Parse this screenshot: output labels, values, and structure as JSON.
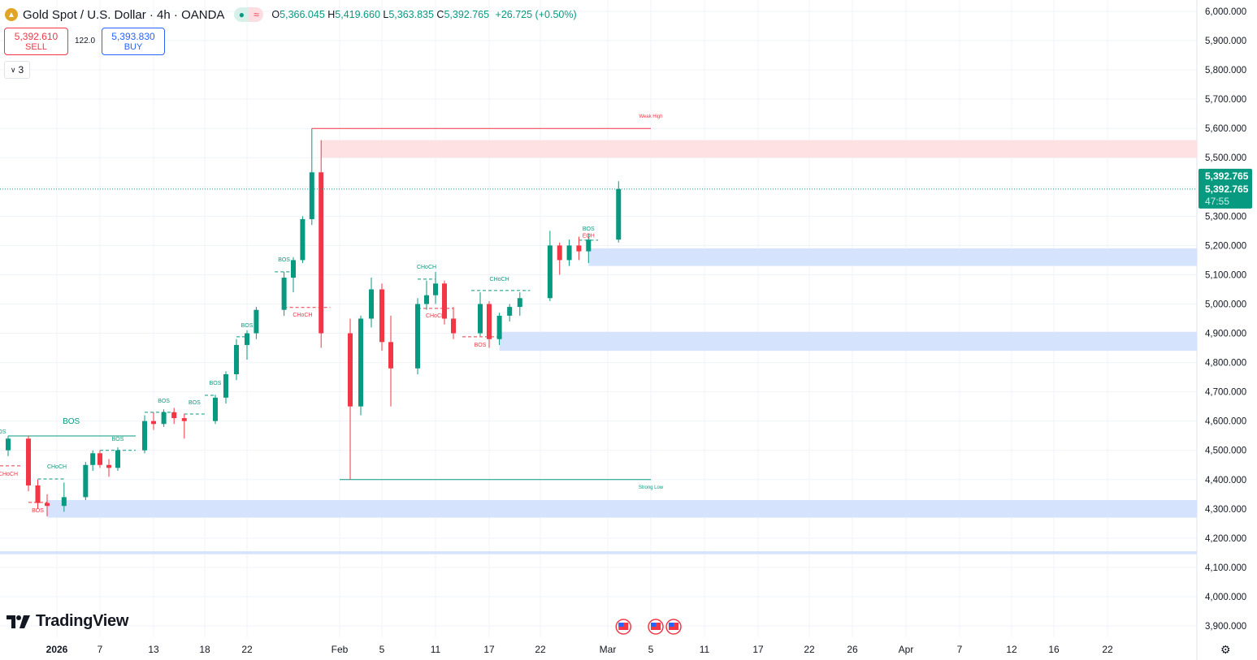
{
  "header": {
    "symbol_title": "Gold Spot / U.S. Dollar · 4h · OANDA",
    "open_label": "O",
    "open": "5,366.045",
    "high_label": "H",
    "high": "5,419.660",
    "low_label": "L",
    "low": "5,363.835",
    "close_label": "C",
    "close": "5,392.765",
    "change": "+26.725 (+0.50%)",
    "market_status_icon": "market-open-dot-icon",
    "data_mode_icon": "approx-icon"
  },
  "trade": {
    "sell_price": "5,392.610",
    "sell_label": "SELL",
    "spread": "122.0",
    "buy_price": "5,393.830",
    "buy_label": "BUY"
  },
  "indicators_toggle": {
    "count": "3",
    "icon": "chevron-down-icon"
  },
  "branding": {
    "logo_text": "TradingView"
  },
  "last_price": {
    "price": "5,392.765",
    "price2": "5,392.765",
    "countdown": "47:55"
  },
  "colors": {
    "up": "#089981",
    "down": "#f23645",
    "supply_zone": "#fde1e3",
    "demand_zone": "#d6e3fd",
    "last_price": "#089981"
  },
  "chart_data": {
    "type": "candlestick",
    "title": "Gold Spot / U.S. Dollar · 4h · OANDA",
    "ylim": [
      3900,
      6000
    ],
    "y_ticks": [
      "6,000.000",
      "5,900.000",
      "5,800.000",
      "5,700.000",
      "5,600.000",
      "5,500.000",
      "5,400.000",
      "5,300.000",
      "5,200.000",
      "5,100.000",
      "5,000.000",
      "4,900.000",
      "4,800.000",
      "4,700.000",
      "4,600.000",
      "4,500.000",
      "4,400.000",
      "4,300.000",
      "4,200.000",
      "4,100.000",
      "4,000.000",
      "3,900.000"
    ],
    "x_ticks": [
      {
        "label": "2026",
        "date": "2026-01-01"
      },
      {
        "label": "7",
        "date": "2026-01-07"
      },
      {
        "label": "13",
        "date": "2026-01-13"
      },
      {
        "label": "18",
        "date": "2026-01-18"
      },
      {
        "label": "22",
        "date": "2026-01-22"
      },
      {
        "label": "Feb",
        "date": "2026-02-01"
      },
      {
        "label": "5",
        "date": "2026-02-05"
      },
      {
        "label": "11",
        "date": "2026-02-11"
      },
      {
        "label": "17",
        "date": "2026-02-17"
      },
      {
        "label": "22",
        "date": "2026-02-22"
      },
      {
        "label": "Mar",
        "date": "2026-03-01"
      },
      {
        "label": "5",
        "date": "2026-03-05"
      },
      {
        "label": "11",
        "date": "2026-03-11"
      },
      {
        "label": "17",
        "date": "2026-03-17"
      },
      {
        "label": "22",
        "date": "2026-03-22"
      },
      {
        "label": "26",
        "date": "2026-03-26"
      },
      {
        "label": "Apr",
        "date": "2026-04-01"
      },
      {
        "label": "7",
        "date": "2026-04-07"
      },
      {
        "label": "12",
        "date": "2026-04-12"
      },
      {
        "label": "16",
        "date": "2026-04-16"
      },
      {
        "label": "22",
        "date": "2026-04-22"
      }
    ],
    "grid": true,
    "candles": [
      [
        "2025-12-26",
        4500,
        4550,
        4480,
        4540
      ],
      [
        "2025-12-29",
        4540,
        4550,
        4360,
        4380
      ],
      [
        "2025-12-30",
        4380,
        4400,
        4300,
        4320
      ],
      [
        "2025-12-31",
        4320,
        4350,
        4275,
        4310
      ],
      [
        "2026-01-02",
        4310,
        4390,
        4290,
        4340
      ],
      [
        "2026-01-05",
        4340,
        4460,
        4330,
        4450
      ],
      [
        "2026-01-06",
        4450,
        4500,
        4430,
        4490
      ],
      [
        "2026-01-07",
        4490,
        4500,
        4440,
        4450
      ],
      [
        "2026-01-08",
        4450,
        4470,
        4410,
        4440
      ],
      [
        "2026-01-09",
        4440,
        4510,
        4430,
        4500
      ],
      [
        "2026-01-12",
        4500,
        4620,
        4490,
        4600
      ],
      [
        "2026-01-13",
        4600,
        4630,
        4570,
        4590
      ],
      [
        "2026-01-14",
        4590,
        4640,
        4580,
        4630
      ],
      [
        "2026-01-15",
        4630,
        4645,
        4590,
        4610
      ],
      [
        "2026-01-16",
        4610,
        4625,
        4540,
        4600
      ],
      [
        "2026-01-19",
        4600,
        4690,
        4590,
        4680
      ],
      [
        "2026-01-20",
        4680,
        4770,
        4660,
        4760
      ],
      [
        "2026-01-21",
        4760,
        4880,
        4740,
        4860
      ],
      [
        "2026-01-22",
        4860,
        4910,
        4810,
        4900
      ],
      [
        "2026-01-23",
        4900,
        4990,
        4880,
        4980
      ],
      [
        "2026-01-26",
        4980,
        5110,
        4960,
        5090
      ],
      [
        "2026-01-27",
        5090,
        5160,
        5040,
        5150
      ],
      [
        "2026-01-28",
        5150,
        5300,
        5140,
        5290
      ],
      [
        "2026-01-29",
        5290,
        5600,
        5270,
        5450
      ],
      [
        "2026-01-30",
        5450,
        5560,
        4850,
        4900
      ],
      [
        "2026-02-02",
        4900,
        4950,
        4400,
        4650
      ],
      [
        "2026-02-03",
        4650,
        4960,
        4620,
        4950
      ],
      [
        "2026-02-04",
        4950,
        5090,
        4920,
        5050
      ],
      [
        "2026-02-05",
        5050,
        5070,
        4840,
        4870
      ],
      [
        "2026-02-06",
        4870,
        4960,
        4650,
        4780
      ],
      [
        "2026-02-09",
        4780,
        5020,
        4760,
        5000
      ],
      [
        "2026-02-10",
        5000,
        5080,
        4980,
        5030
      ],
      [
        "2026-02-11",
        5030,
        5110,
        5000,
        5070
      ],
      [
        "2026-02-12",
        5070,
        5080,
        4930,
        4950
      ],
      [
        "2026-02-13",
        4950,
        4990,
        4880,
        4900
      ],
      [
        "2026-02-16",
        4900,
        5040,
        4890,
        5000
      ],
      [
        "2026-02-17",
        5000,
        5010,
        4850,
        4880
      ],
      [
        "2026-02-18",
        4880,
        4970,
        4860,
        4960
      ],
      [
        "2026-02-19",
        4960,
        5000,
        4940,
        4990
      ],
      [
        "2026-02-20",
        4990,
        5040,
        4960,
        5020
      ],
      [
        "2026-02-23",
        5020,
        5250,
        5010,
        5200
      ],
      [
        "2026-02-24",
        5200,
        5210,
        5100,
        5150
      ],
      [
        "2026-02-25",
        5150,
        5220,
        5130,
        5200
      ],
      [
        "2026-02-26",
        5200,
        5230,
        5150,
        5180
      ],
      [
        "2026-02-27",
        5180,
        5240,
        5140,
        5220
      ],
      [
        "2026-03-02",
        5220,
        5419.66,
        5210,
        5392.765
      ]
    ],
    "last_price": 5392.765,
    "zones": [
      {
        "type": "supply",
        "from": "2026-01-30",
        "top": 5560,
        "bottom": 5500
      },
      {
        "type": "demand",
        "from": "2026-02-27",
        "top": 5190,
        "bottom": 5130
      },
      {
        "type": "demand",
        "from": "2026-02-18",
        "top": 4905,
        "bottom": 4840
      },
      {
        "type": "demand",
        "from": "2025-12-31",
        "top": 4330,
        "bottom": 4270
      },
      {
        "type": "demand",
        "from": "2025-12-24",
        "top": 4155,
        "bottom": 4145
      }
    ],
    "levels": [
      {
        "from": "2025-12-26",
        "to": "2026-01-11",
        "price": 4549,
        "style": "solid",
        "color": "#089981"
      },
      {
        "from": "2025-12-24",
        "to": "2025-12-28",
        "price": 4447,
        "style": "dashed",
        "color": "#f23645"
      },
      {
        "from": "2025-12-30",
        "to": "2026-01-02",
        "price": 4402,
        "style": "dashed",
        "color": "#089981"
      },
      {
        "from": "2025-12-29",
        "to": "2025-12-31",
        "price": 4322,
        "style": "dashed",
        "color": "#f23645"
      },
      {
        "from": "2026-01-07",
        "to": "2026-01-11",
        "price": 4500,
        "style": "dashed",
        "color": "#089981"
      },
      {
        "from": "2026-01-12",
        "to": "2026-01-15",
        "price": 4630,
        "style": "dashed",
        "color": "#089981"
      },
      {
        "from": "2026-01-16",
        "to": "2026-01-18",
        "price": 4624,
        "style": "dashed",
        "color": "#089981"
      },
      {
        "from": "2026-01-18",
        "to": "2026-01-19",
        "price": 4688,
        "style": "dashed",
        "color": "#089981"
      },
      {
        "from": "2026-01-21",
        "to": "2026-01-22",
        "price": 4888,
        "style": "dashed",
        "color": "#089981"
      },
      {
        "from": "2026-01-25",
        "to": "2026-01-27",
        "price": 5110,
        "style": "dashed",
        "color": "#089981"
      },
      {
        "from": "2026-01-26",
        "to": "2026-01-31",
        "price": 4988,
        "style": "dashed",
        "color": "#f23645"
      },
      {
        "from": "2026-02-09",
        "to": "2026-02-11",
        "price": 5085,
        "style": "dashed",
        "color": "#089981"
      },
      {
        "from": "2026-02-09",
        "to": "2026-02-13",
        "price": 4985,
        "style": "dashed",
        "color": "#f23645"
      },
      {
        "from": "2026-02-15",
        "to": "2026-02-21",
        "price": 5046,
        "style": "dashed",
        "color": "#089981"
      },
      {
        "from": "2026-02-14",
        "to": "2026-02-18",
        "price": 4888,
        "style": "dashed",
        "color": "#f23645"
      },
      {
        "from": "2026-02-26",
        "to": "2026-02-28",
        "price": 5218,
        "style": "dashed",
        "color": "#089981"
      },
      {
        "from": "2026-01-29",
        "to": "2026-03-05",
        "price": 5600,
        "style": "solid",
        "color": "#f23645"
      },
      {
        "from": "2026-02-01",
        "to": "2026-03-05",
        "price": 4400,
        "style": "solid",
        "color": "#089981"
      }
    ],
    "annotations": [
      {
        "text": "BOS",
        "date": "2025-12-24",
        "price": 4558,
        "color": "#089981"
      },
      {
        "text": "BOS",
        "date": "2026-01-03",
        "price": 4591,
        "color": "#089981",
        "large": true
      },
      {
        "text": "CHoCH",
        "date": "2025-12-26",
        "price": 4413,
        "color": "#f23645"
      },
      {
        "text": "CHoCH",
        "date": "2026-01-01",
        "price": 4438,
        "color": "#089981"
      },
      {
        "text": "BOS",
        "date": "2025-12-30",
        "price": 4288,
        "color": "#f23645"
      },
      {
        "text": "BOS",
        "date": "2026-01-09",
        "price": 4533,
        "color": "#089981"
      },
      {
        "text": "BOS",
        "date": "2026-01-14",
        "price": 4663,
        "color": "#089981"
      },
      {
        "text": "BOS",
        "date": "2026-01-17",
        "price": 4657,
        "color": "#089981"
      },
      {
        "text": "BOS",
        "date": "2026-01-19",
        "price": 4724,
        "color": "#089981"
      },
      {
        "text": "BOS",
        "date": "2026-01-22",
        "price": 4921,
        "color": "#089981"
      },
      {
        "text": "BOS",
        "date": "2026-01-26",
        "price": 5146,
        "color": "#089981"
      },
      {
        "text": "CHoCH",
        "date": "2026-01-28",
        "price": 4957,
        "color": "#f23645"
      },
      {
        "text": "CHoCH",
        "date": "2026-02-10",
        "price": 5121,
        "color": "#089981"
      },
      {
        "text": "CHoCH",
        "date": "2026-02-11",
        "price": 4954,
        "color": "#f23645"
      },
      {
        "text": "CHoCH",
        "date": "2026-02-18",
        "price": 5079,
        "color": "#089981"
      },
      {
        "text": "BOS",
        "date": "2026-02-16",
        "price": 4854,
        "color": "#f23645"
      },
      {
        "text": "BOS",
        "date": "2026-02-27",
        "price": 5251,
        "color": "#089981"
      },
      {
        "text": "EQH",
        "date": "2026-02-27",
        "price": 5234,
        "color": "#f23645"
      },
      {
        "text": "Weak High",
        "date": "2026-03-05",
        "price": 5636,
        "color": "#f23645"
      },
      {
        "text": "Strong Low",
        "date": "2026-03-05",
        "price": 4369,
        "color": "#089981"
      }
    ],
    "events": [
      {
        "date": "2026-03-02",
        "icon": "us-flag-icon"
      },
      {
        "date": "2026-03-05",
        "icon": "us-flag-icon"
      },
      {
        "date": "2026-03-07",
        "icon": "us-flag-icon"
      }
    ]
  }
}
